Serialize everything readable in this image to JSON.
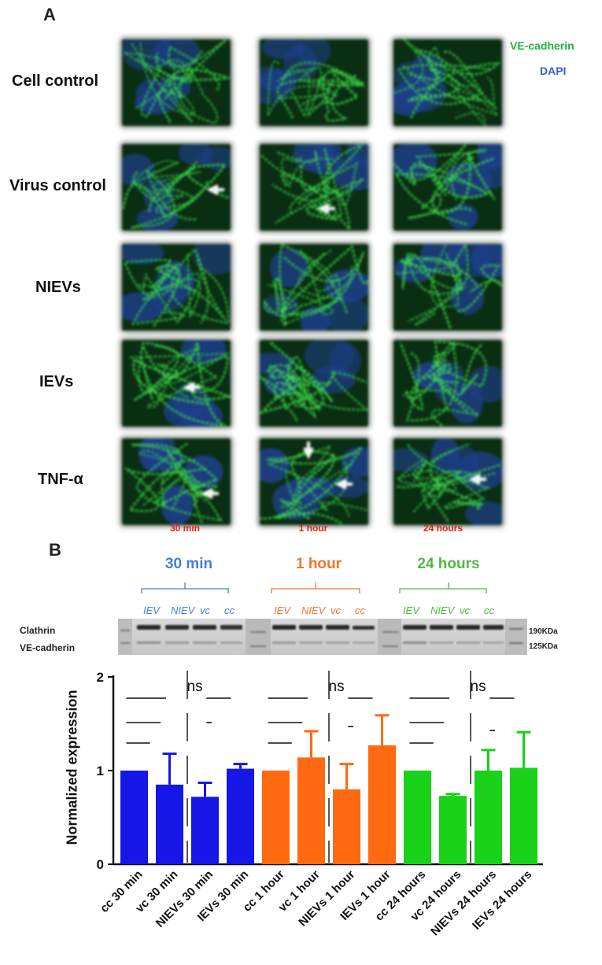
{
  "panel_a": {
    "letter": "A",
    "legend": {
      "ve": "VE-cadherin",
      "dapi": "DAPI"
    },
    "rows": [
      "Cell control",
      "Virus control",
      "NIEVs",
      "IEVs",
      "TNF-α"
    ],
    "times": [
      "30 min",
      "1 hour",
      "24 hours"
    ]
  },
  "panel_b": {
    "letter": "B",
    "blot": {
      "groups": [
        {
          "label": "30 min",
          "color": "#4a7fd0"
        },
        {
          "label": "1 hour",
          "color": "#f0762a"
        },
        {
          "label": "24 hours",
          "color": "#55b545"
        }
      ],
      "lanes": [
        "IEV",
        "NIEV",
        "vc",
        "cc"
      ],
      "bands": [
        "Clathrin",
        "VE-cadherin"
      ],
      "markers": [
        "190KDa",
        "125KDa"
      ]
    }
  },
  "chart_data": {
    "type": "bar",
    "ylabel": "Normalized expression",
    "ylim": [
      0,
      2
    ],
    "yticks": [
      "0",
      "1",
      "2"
    ],
    "categories": [
      "cc 30 min",
      "vc 30 min",
      "NIEVs 30 min",
      "IEVs 30 min",
      "cc 1 hour",
      "vc 1 hour",
      "NIEVs 1 hour",
      "IEVs 1 hour",
      "cc 24 hours",
      "vc 24 hours",
      "NIEVs 24 hours",
      "IEVs 24 hours"
    ],
    "values": [
      1.0,
      0.85,
      0.72,
      1.02,
      1.0,
      1.14,
      0.8,
      1.27,
      1.0,
      0.73,
      1.0,
      1.03
    ],
    "errors": [
      0.0,
      0.33,
      0.15,
      0.05,
      0.0,
      0.28,
      0.27,
      0.32,
      0.0,
      0.02,
      0.22,
      0.38
    ],
    "colors": [
      "#1616e6",
      "#1616e6",
      "#1616e6",
      "#1616e6",
      "#ff6a10",
      "#ff6a10",
      "#ff6a10",
      "#ff6a10",
      "#19d219",
      "#19d219",
      "#19d219",
      "#19d219"
    ],
    "annotations": [
      "ns",
      "ns",
      "ns"
    ]
  }
}
